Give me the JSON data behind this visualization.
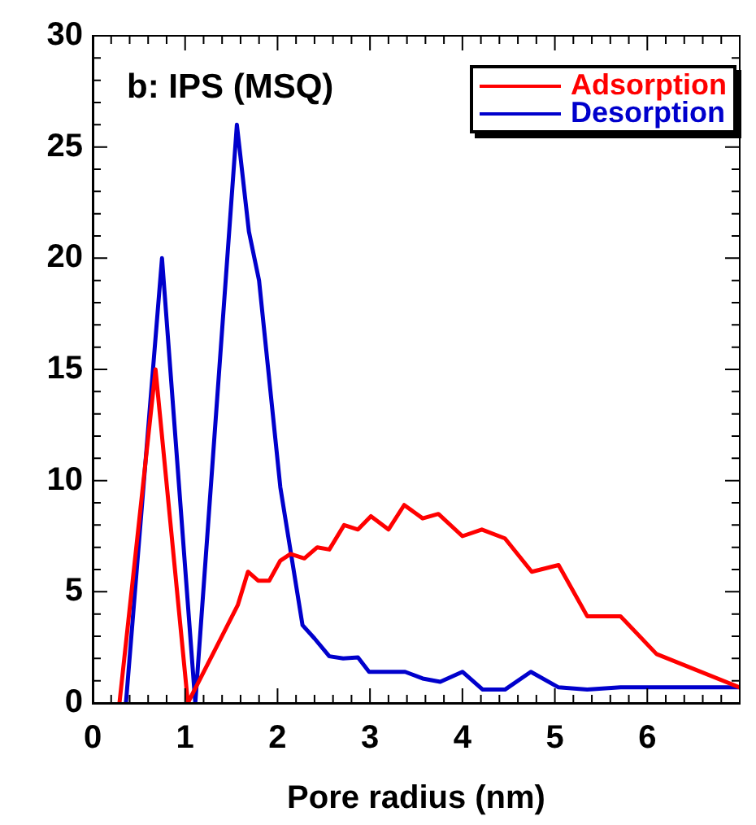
{
  "chart_data": {
    "type": "line",
    "title": "b: IPS (MSQ)",
    "xlabel": "Pore radius (nm)",
    "series": [
      {
        "name": "Adsorption",
        "color": "#ff0000",
        "x": [
          0.29,
          0.68,
          1.03,
          1.57,
          1.68,
          1.79,
          1.91,
          2.03,
          2.14,
          2.29,
          2.43,
          2.56,
          2.72,
          2.87,
          3.01,
          3.2,
          3.37,
          3.57,
          3.74,
          4.0,
          4.21,
          4.46,
          4.75,
          5.04,
          5.35,
          5.71,
          6.1,
          7.0
        ],
        "values": [
          0,
          15,
          0,
          4.4,
          5.9,
          5.5,
          5.5,
          6.4,
          6.7,
          6.5,
          7.0,
          6.9,
          8.0,
          7.8,
          8.4,
          7.8,
          8.9,
          8.3,
          8.5,
          7.5,
          7.8,
          7.4,
          5.9,
          6.2,
          3.9,
          3.9,
          2.2,
          0.7
        ]
      },
      {
        "name": "Desorption",
        "color": "#0000cc",
        "x": [
          0.36,
          0.75,
          1.11,
          1.56,
          1.69,
          1.8,
          2.03,
          2.27,
          2.4,
          2.56,
          2.71,
          2.87,
          2.99,
          3.38,
          3.57,
          3.76,
          4.0,
          4.22,
          4.46,
          4.74,
          5.04,
          5.35,
          5.71,
          7.0
        ],
        "values": [
          0,
          20,
          0,
          26,
          21.2,
          19,
          9.7,
          3.5,
          2.9,
          2.1,
          2.0,
          2.05,
          1.4,
          1.4,
          1.1,
          0.95,
          1.4,
          0.6,
          0.6,
          1.4,
          0.7,
          0.6,
          0.7,
          0.7
        ]
      }
    ],
    "xlim": [
      0,
      7
    ],
    "xticks": [
      0,
      {
        "value": 0.2,
        "label": null
      },
      {
        "value": 0.4,
        "label": null
      },
      {
        "value": 0.6,
        "label": null
      },
      {
        "value": 0.8,
        "label": null
      },
      1,
      {
        "value": 1.2,
        "label": null
      },
      {
        "value": 1.4,
        "label": null
      },
      {
        "value": 1.6,
        "label": null
      },
      {
        "value": 1.8,
        "label": null
      },
      2,
      {
        "value": 2.2,
        "label": null
      },
      {
        "value": 2.4,
        "label": null
      },
      {
        "value": 2.6,
        "label": null
      },
      {
        "value": 2.8,
        "label": null
      },
      3,
      {
        "value": 3.2,
        "label": null
      },
      {
        "value": 3.4,
        "label": null
      },
      {
        "value": 3.6,
        "label": null
      },
      {
        "value": 3.8,
        "label": null
      },
      4,
      {
        "value": 4.2,
        "label": null
      },
      {
        "value": 4.4,
        "label": null
      },
      {
        "value": 4.6,
        "label": null
      },
      {
        "value": 4.8,
        "label": null
      },
      5,
      {
        "value": 5.2,
        "label": null
      },
      {
        "value": 5.4,
        "label": null
      },
      {
        "value": 5.6,
        "label": null
      },
      {
        "value": 5.8,
        "label": null
      },
      6,
      {
        "value": 6.2,
        "label": null
      },
      {
        "value": 6.4,
        "label": null
      },
      {
        "value": 6.6,
        "label": null
      },
      {
        "value": 6.8,
        "label": null
      },
      {
        "value": 7,
        "label": null
      }
    ],
    "ylim": [
      0,
      30
    ],
    "yticks": [
      0,
      {
        "value": 1,
        "label": null
      },
      {
        "value": 2,
        "label": null
      },
      {
        "value": 3,
        "label": null
      },
      {
        "value": 4,
        "label": null
      },
      5,
      {
        "value": 6,
        "label": null
      },
      {
        "value": 7,
        "label": null
      },
      {
        "value": 8,
        "label": null
      },
      {
        "value": 9,
        "label": null
      },
      10,
      {
        "value": 11,
        "label": null
      },
      {
        "value": 12,
        "label": null
      },
      {
        "value": 13,
        "label": null
      },
      {
        "value": 14,
        "label": null
      },
      15,
      {
        "value": 16,
        "label": null
      },
      {
        "value": 17,
        "label": null
      },
      {
        "value": 18,
        "label": null
      },
      {
        "value": 19,
        "label": null
      },
      20,
      {
        "value": 21,
        "label": null
      },
      {
        "value": 22,
        "label": null
      },
      {
        "value": 23,
        "label": null
      },
      {
        "value": 24,
        "label": null
      },
      25,
      {
        "value": 26,
        "label": null
      },
      {
        "value": 27,
        "label": null
      },
      {
        "value": 28,
        "label": null
      },
      {
        "value": 29,
        "label": null
      },
      30
    ],
    "grid": false,
    "legend": "top right",
    "marker": "none",
    "line_style": "solid"
  }
}
